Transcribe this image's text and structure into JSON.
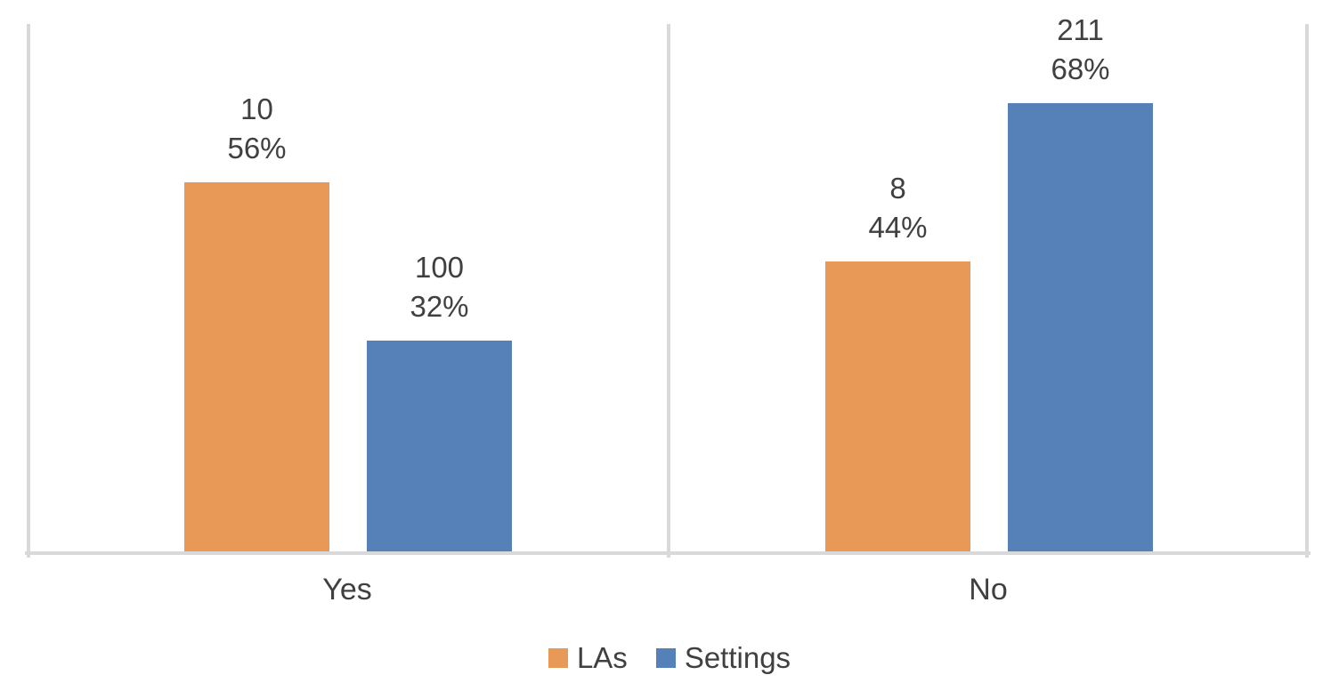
{
  "chart_data": {
    "type": "bar",
    "title": "",
    "categories": [
      "Yes",
      "No"
    ],
    "series": [
      {
        "name": "LAs",
        "color": "#E89958",
        "counts": [
          10,
          8
        ],
        "percents": [
          56,
          44
        ]
      },
      {
        "name": "Settings",
        "color": "#5580B8",
        "counts": [
          100,
          211
        ],
        "percents": [
          32,
          68
        ]
      }
    ],
    "data_labels": {
      "format": "count above percent",
      "texts": [
        [
          "10\n56%",
          "8\n44%"
        ],
        [
          "100\n32%",
          "211\n68%"
        ]
      ]
    },
    "value_axis": {
      "min": 0,
      "max": 80,
      "unit": "percent",
      "tick_labels_visible": false
    },
    "category_axis": {
      "labels": [
        "Yes",
        "No"
      ]
    },
    "legend": {
      "position": "bottom",
      "entries": [
        "LAs",
        "Settings"
      ]
    },
    "grid": false,
    "panel_border_color": "#D9D9D9",
    "text_color": "#404040"
  }
}
